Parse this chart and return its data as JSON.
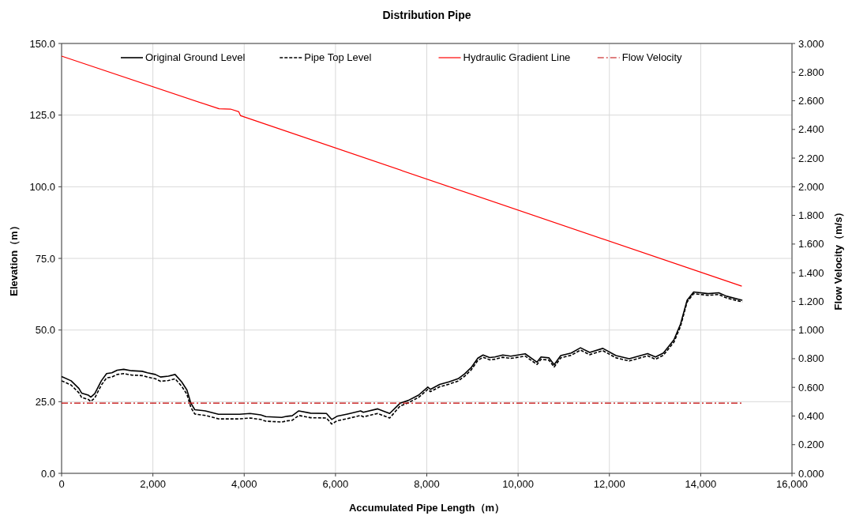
{
  "chart_data": {
    "type": "line",
    "title": "Distribution Pipe",
    "xlabel": "Accumulated Pipe Length（m）",
    "ylabel": "Elevation（m）",
    "y2label": "Flow Velocity（m/s）",
    "xlim": [
      0,
      16000
    ],
    "xticks": [
      0,
      {
        "value": 2000,
        "label": "2,000"
      },
      {
        "value": 4000,
        "label": "4,000"
      },
      {
        "value": 6000,
        "label": "6,000"
      },
      {
        "value": 8000,
        "label": "8,000"
      },
      {
        "value": 10000,
        "label": "10,000"
      },
      {
        "value": 12000,
        "label": "12,000"
      },
      {
        "value": 14000,
        "label": "14,000"
      },
      {
        "value": 16000,
        "label": "16,000"
      }
    ],
    "ylim": [
      0,
      150
    ],
    "yticks": [
      {
        "value": 0,
        "label": "0.0"
      },
      {
        "value": 25,
        "label": "25.0"
      },
      {
        "value": 50,
        "label": "50.0"
      },
      {
        "value": 75,
        "label": "75.0"
      },
      {
        "value": 100,
        "label": "100.0"
      },
      {
        "value": 125,
        "label": "125.0"
      },
      {
        "value": 150,
        "label": "150.0"
      }
    ],
    "y2lim": [
      0,
      3
    ],
    "y2ticks": [
      {
        "value": 0,
        "label": "0.000"
      },
      {
        "value": 0.2,
        "label": "0.200"
      },
      {
        "value": 0.4,
        "label": "0.400"
      },
      {
        "value": 0.6,
        "label": "0.600"
      },
      {
        "value": 0.8,
        "label": "0.800"
      },
      {
        "value": 1,
        "label": "1.000"
      },
      {
        "value": 1.2,
        "label": "1.200"
      },
      {
        "value": 1.4,
        "label": "1.400"
      },
      {
        "value": 1.6,
        "label": "1.600"
      },
      {
        "value": 1.8,
        "label": "1.800"
      },
      {
        "value": 2,
        "label": "2.000"
      },
      {
        "value": 2.2,
        "label": "2.200"
      },
      {
        "value": 2.4,
        "label": "2.400"
      },
      {
        "value": 2.6,
        "label": "2.600"
      },
      {
        "value": 2.8,
        "label": "2.800"
      },
      {
        "value": 3,
        "label": "3.000"
      }
    ],
    "grid": true,
    "legend": "top",
    "series": [
      {
        "name": "Original Ground Level",
        "color": "#000000",
        "line_style": "solid",
        "x": [
          0,
          208,
          380,
          438,
          583,
          640,
          727,
          871,
          986,
          1102,
          1217,
          1361,
          1534,
          1765,
          1880,
          2053,
          2168,
          2341,
          2486,
          2630,
          2745,
          2832,
          2918,
          3149,
          3437,
          3898,
          4129,
          4360,
          4475,
          4821,
          4936,
          5052,
          5196,
          5456,
          5802,
          5917,
          6032,
          6263,
          6551,
          6609,
          6926,
          7071,
          7187,
          7417,
          7590,
          7820,
          8022,
          8080,
          8282,
          8484,
          8685,
          8829,
          8973,
          9118,
          9233,
          9377,
          9492,
          9666,
          9839,
          10156,
          10415,
          10502,
          10675,
          10790,
          10934,
          11164,
          11367,
          11569,
          11857,
          12145,
          12434,
          12837,
          13010,
          13183,
          13414,
          13559,
          13702,
          13846,
          14164,
          14394,
          14567,
          14913
        ],
        "values": [
          33.8,
          32.3,
          29.6,
          28.0,
          27.3,
          26.6,
          27.8,
          32.3,
          34.8,
          35.1,
          36.0,
          36.3,
          35.8,
          35.6,
          35.1,
          34.5,
          33.6,
          33.9,
          34.5,
          31.9,
          29.1,
          24.5,
          22.2,
          21.8,
          20.6,
          20.6,
          20.9,
          20.4,
          19.8,
          19.5,
          19.9,
          20.1,
          21.8,
          21.0,
          20.9,
          18.8,
          19.9,
          20.7,
          21.8,
          21.3,
          22.5,
          21.6,
          20.9,
          24.5,
          25.4,
          27.3,
          30.1,
          29.3,
          31.0,
          31.9,
          33.0,
          34.7,
          36.9,
          40.2,
          41.3,
          40.4,
          40.6,
          41.3,
          40.9,
          41.7,
          38.8,
          40.6,
          40.3,
          37.9,
          41.1,
          42.0,
          43.8,
          42.2,
          43.6,
          41.1,
          40.0,
          41.8,
          40.6,
          42.0,
          46.6,
          52.1,
          60.4,
          63.3,
          62.7,
          63.0,
          61.8,
          60.4
        ]
      },
      {
        "name": "Pipe Top Level",
        "color": "#000000",
        "line_style": "dashed",
        "x": [
          0,
          208,
          380,
          438,
          583,
          640,
          727,
          871,
          986,
          1102,
          1217,
          1361,
          1534,
          1765,
          1880,
          2053,
          2168,
          2341,
          2486,
          2630,
          2745,
          2832,
          2918,
          3149,
          3437,
          3898,
          4129,
          4360,
          4475,
          4821,
          4936,
          5052,
          5196,
          5456,
          5802,
          5917,
          6032,
          6263,
          6551,
          6609,
          6926,
          7071,
          7187,
          7417,
          7590,
          7820,
          8022,
          8080,
          8282,
          8484,
          8685,
          8829,
          8973,
          9118,
          9233,
          9377,
          9492,
          9666,
          9839,
          10156,
          10415,
          10502,
          10675,
          10790,
          10934,
          11164,
          11367,
          11569,
          11857,
          12145,
          12434,
          12837,
          13010,
          13183,
          13414,
          13559,
          13702,
          13846,
          14164,
          14394,
          14567,
          14913
        ],
        "values": [
          32.3,
          30.8,
          28.1,
          26.5,
          25.8,
          25.1,
          26.3,
          30.8,
          33.3,
          33.6,
          34.5,
          34.8,
          34.3,
          34.1,
          33.6,
          33.0,
          32.1,
          32.4,
          33.0,
          30.4,
          27.6,
          23.0,
          20.7,
          20.2,
          19.0,
          19.0,
          19.3,
          18.8,
          18.2,
          17.9,
          18.3,
          18.5,
          20.2,
          19.4,
          19.3,
          17.2,
          18.3,
          19.1,
          20.2,
          19.7,
          20.9,
          20.0,
          19.3,
          23.5,
          24.6,
          26.5,
          29.3,
          28.5,
          30.2,
          31.1,
          32.2,
          33.9,
          36.1,
          39.4,
          40.5,
          39.6,
          39.8,
          40.5,
          40.1,
          40.9,
          38.0,
          39.8,
          39.5,
          37.1,
          40.3,
          41.2,
          43.0,
          41.4,
          42.8,
          40.3,
          39.2,
          41.0,
          39.8,
          41.2,
          45.8,
          51.3,
          59.8,
          62.7,
          62.1,
          62.4,
          61.2,
          59.8
        ]
      },
      {
        "name": "Hydraulic Gradient Line",
        "color": "#ff0000",
        "line_style": "solid",
        "x": [
          0,
          3450,
          3700,
          3880,
          3920,
          14900
        ],
        "values": [
          145.6,
          127.2,
          127.1,
          126.2,
          124.8,
          65.3
        ]
      },
      {
        "name": "Flow Velocity",
        "color": "#c00000",
        "line_style": "dashdot",
        "axis": "y2",
        "x": [
          0,
          14900
        ],
        "values": [
          0.49,
          0.49
        ]
      }
    ]
  }
}
